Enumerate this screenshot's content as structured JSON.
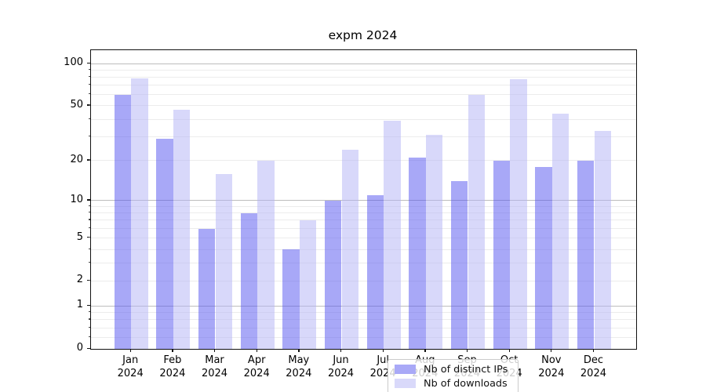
{
  "title": "expm 2024",
  "legend": {
    "items": [
      {
        "label": "Nb of distinct IPs",
        "color": "#a9a9f7"
      },
      {
        "label": "Nb of downloads",
        "color": "#d9d9fa"
      }
    ]
  },
  "axes": {
    "ytick_labels": [
      "100",
      "50",
      "20",
      "10",
      "5",
      "2",
      "1",
      "0"
    ],
    "year_label": "2024"
  },
  "chart_data": {
    "type": "bar",
    "title": "expm 2024",
    "categories": [
      "Jan 2024",
      "Feb 2024",
      "Mar 2024",
      "Apr 2024",
      "May 2024",
      "Jun 2024",
      "Jul 2024",
      "Aug 2024",
      "Sep 2024",
      "Oct 2024",
      "Nov 2024",
      "Dec 2024"
    ],
    "series": [
      {
        "name": "Nb of distinct IPs",
        "color_fill": "rgba(82,82,240,0.5)",
        "color_solid": "#a9a9f7",
        "values": [
          60,
          29,
          6,
          8,
          4,
          10,
          11,
          21,
          14,
          20,
          18,
          20
        ]
      },
      {
        "name": "Nb of downloads",
        "color_fill": "rgba(177,177,245,0.5)",
        "color_solid": "#d9d9fa",
        "values": [
          78,
          47,
          16,
          20,
          7,
          24,
          39,
          31,
          60,
          77,
          44,
          33
        ]
      }
    ],
    "xlabel": "",
    "ylabel": "",
    "yscale": "log1p",
    "ylim": [
      0,
      124
    ],
    "yticks": [
      0,
      1,
      2,
      5,
      10,
      20,
      50,
      100
    ],
    "major_gridlines": [
      1,
      10,
      100
    ],
    "minor_gridlines": [
      0.2,
      0.4,
      0.6,
      0.8,
      2,
      3,
      4,
      5,
      6,
      7,
      8,
      9,
      20,
      30,
      40,
      50,
      60,
      70,
      80,
      90
    ],
    "grid": true,
    "legend_position": "lower-center"
  }
}
